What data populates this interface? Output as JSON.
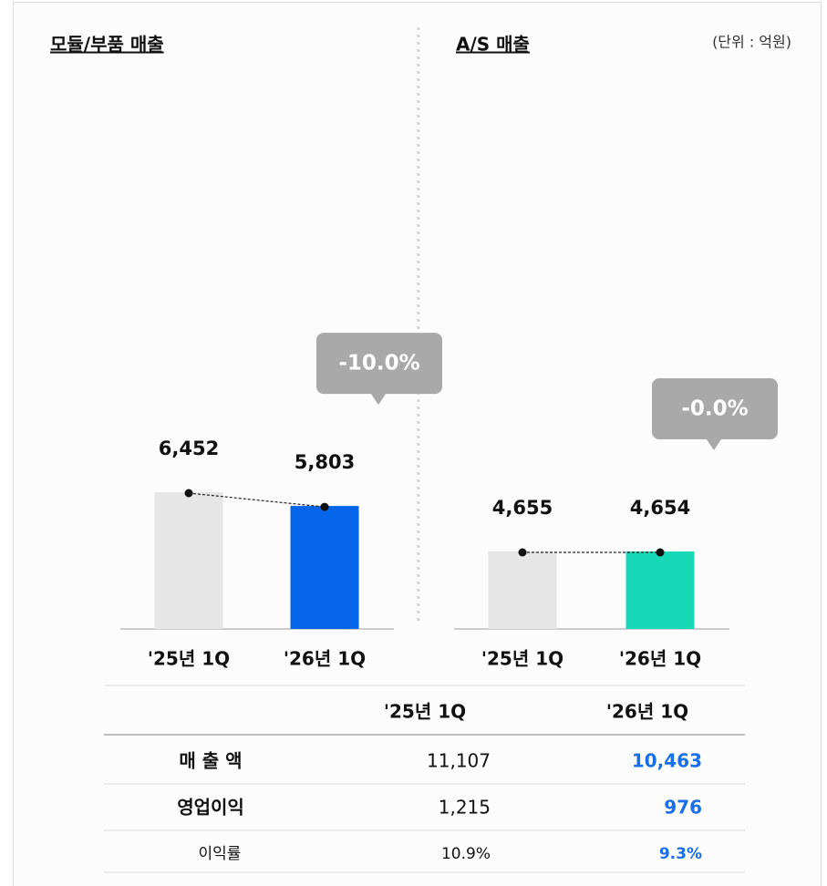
{
  "unit": "(단위 : 억원)",
  "chart_data": [
    {
      "type": "bar",
      "title": "모듈/부품 매출",
      "categories": [
        "'25년 1Q",
        "'26년 1Q"
      ],
      "values": [
        6452,
        5803
      ],
      "value_labels": [
        "6,452",
        "5,803"
      ],
      "colors": [
        "#e6e6e6",
        "#0565e8"
      ],
      "change": {
        "value": -10.0,
        "label": "-10.0%"
      }
    },
    {
      "type": "bar",
      "title": "A/S 매출",
      "categories": [
        "'25년 1Q",
        "'26년 1Q"
      ],
      "values": [
        4655,
        4654
      ],
      "value_labels": [
        "4,655",
        "4,654"
      ],
      "colors": [
        "#e6e6e6",
        "#17d9b8"
      ],
      "change": {
        "value": -0.0,
        "label": "-0.0%"
      }
    }
  ],
  "table": {
    "columns": [
      "'25년 1Q",
      "'26년 1Q"
    ],
    "rows": [
      {
        "label": "매 출 액",
        "values": [
          "11,107",
          "10,463"
        ]
      },
      {
        "label": "영업이익",
        "values": [
          "1,215",
          "976"
        ]
      },
      {
        "label": "이익률",
        "values": [
          "10.9%",
          "9.3%"
        ]
      }
    ]
  }
}
